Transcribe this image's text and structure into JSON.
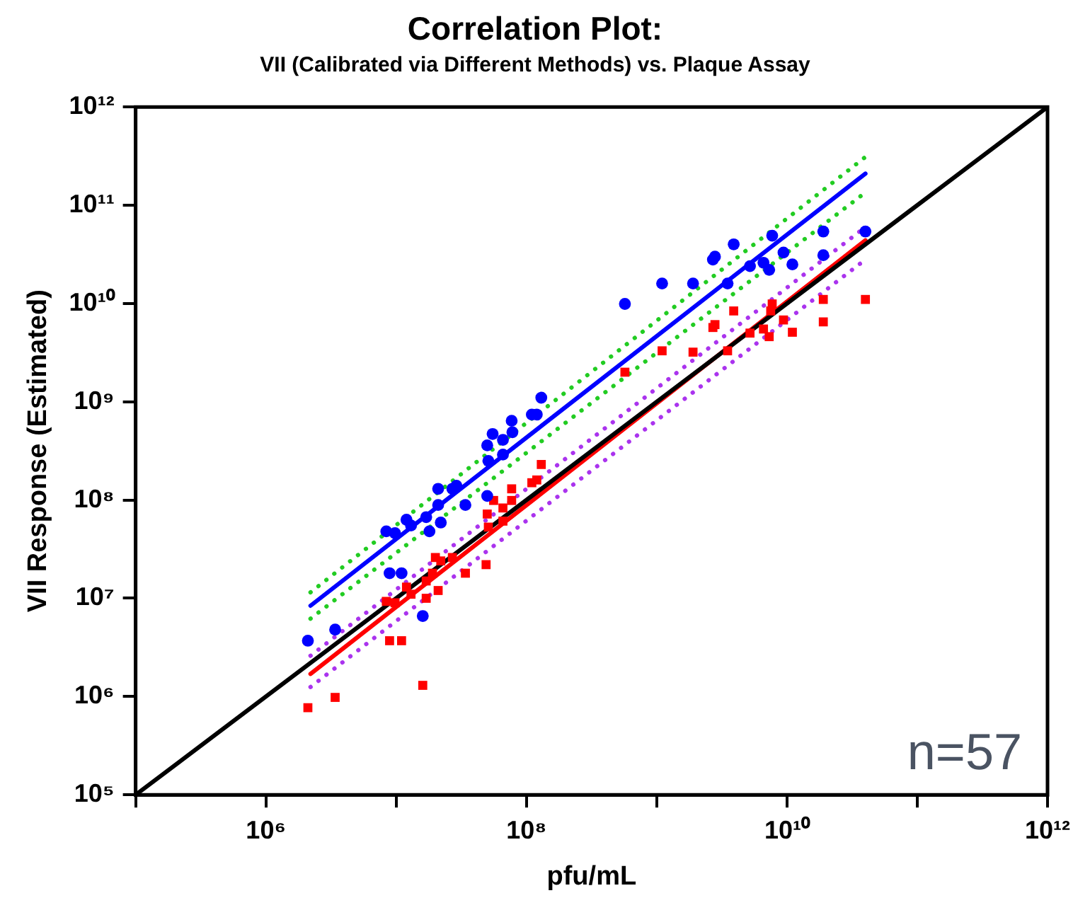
{
  "chart_data": {
    "type": "scatter",
    "title": "Correlation Plot:",
    "subtitle": "VII (Calibrated via Different Methods) vs. Plaque Assay",
    "xlabel": "pfu/mL",
    "ylabel": "VII Response (Estimated)",
    "log": "xy",
    "grid": false,
    "legend": false,
    "xlim": [
      100000.0,
      1000000000000.0
    ],
    "ylim": [
      100000.0,
      1000000000000.0
    ],
    "xticks": [
      {
        "value": 100000.0,
        "label": null
      },
      {
        "value": 1000000.0,
        "label": "10⁶"
      },
      {
        "value": 10000000.0,
        "label": null
      },
      {
        "value": 100000000.0,
        "label": "10⁸"
      },
      {
        "value": 1000000000.0,
        "label": null
      },
      {
        "value": 10000000000.0,
        "label": "10¹⁰"
      },
      {
        "value": 100000000000.0,
        "label": null
      },
      {
        "value": 1000000000000.0,
        "label": "10¹²"
      }
    ],
    "yticks": [
      {
        "value": 100000.0,
        "label": "10⁵"
      },
      {
        "value": 1000000.0,
        "label": "10⁶"
      },
      {
        "value": 10000000.0,
        "label": "10⁷"
      },
      {
        "value": 100000000.0,
        "label": "10⁸"
      },
      {
        "value": 1000000000.0,
        "label": "10⁹"
      },
      {
        "value": 10000000000.0,
        "label": "10¹⁰"
      },
      {
        "value": 100000000000.0,
        "label": "10¹¹"
      },
      {
        "value": 1000000000000.0,
        "label": "10¹²"
      }
    ],
    "annotations": [
      "n=57"
    ],
    "series": [
      {
        "marker": "circle",
        "color": "#0000ff",
        "x": [
          2100000.0,
          3400000.0,
          8900000.0,
          11000000.0,
          16000000.0,
          8400000.0,
          9800000.0,
          12000000.0,
          13000000.0,
          17000000.0,
          18000000.0,
          21000000.0,
          22000000.0,
          21000000.0,
          27000000.0,
          29000000.0,
          34000000.0,
          50000000.0,
          51000000.0,
          50000000.0,
          55000000.0,
          66000000.0,
          66000000.0,
          77000000.0,
          78000000.0,
          110000000.0,
          120000000.0,
          130000000.0,
          570000000.0,
          1100000000.0,
          1900000000.0,
          2700000000.0,
          2800000000.0,
          3900000000.0,
          3500000000.0,
          5200000000.0,
          6600000000.0,
          7300000000.0,
          7700000000.0,
          9400000000.0,
          11000000000.0,
          19000000000.0,
          19000000000.0,
          40000000000.0
        ],
        "values": [
          3700000.0,
          4800000.0,
          18000000.0,
          18000000.0,
          6600000.0,
          48000000.0,
          46000000.0,
          63000000.0,
          55000000.0,
          67000000.0,
          48000000.0,
          130000000.0,
          59000000.0,
          89000000.0,
          130000000.0,
          140000000.0,
          89000000.0,
          110000000.0,
          250000000.0,
          360000000.0,
          470000000.0,
          410000000.0,
          290000000.0,
          640000000.0,
          490000000.0,
          740000000.0,
          740000000.0,
          1100000000.0,
          9900000000.0,
          16000000000.0,
          16000000000.0,
          28000000000.0,
          30000000000.0,
          40000000000.0,
          16000000000.0,
          24000000000.0,
          26000000000.0,
          22000000000.0,
          49000000000.0,
          33000000000.0,
          25000000000.0,
          54000000000.0,
          31000000000.0,
          54000000000.0
        ]
      },
      {
        "marker": "square",
        "color": "#ff0000",
        "x": [
          2100000.0,
          3400000.0,
          8900000.0,
          11000000.0,
          16000000.0,
          8400000.0,
          9800000.0,
          12000000.0,
          13000000.0,
          17000000.0,
          17000000.0,
          21000000.0,
          19000000.0,
          20000000.0,
          22000000.0,
          27000000.0,
          34000000.0,
          49000000.0,
          50000000.0,
          56000000.0,
          66000000.0,
          77000000.0,
          77000000.0,
          66000000.0,
          51000000.0,
          110000000.0,
          120000000.0,
          130000000.0,
          570000000.0,
          1100000000.0,
          1900000000.0,
          2700000000.0,
          2800000000.0,
          3900000000.0,
          3500000000.0,
          5200000000.0,
          6600000000.0,
          7300000000.0,
          7700000000.0,
          7500000000.0,
          9400000000.0,
          11000000000.0,
          19000000000.0,
          19000000000.0,
          40000000000.0
        ],
        "values": [
          770000.0,
          980000.0,
          3700000.0,
          3700000.0,
          1300000.0,
          9300000.0,
          9000000.0,
          13000000.0,
          11000000.0,
          15000000.0,
          10000000.0,
          12000000.0,
          18000000.0,
          26000000.0,
          24000000.0,
          26000000.0,
          18000000.0,
          22000000.0,
          72000000.0,
          99000000.0,
          83000000.0,
          130000000.0,
          99000000.0,
          61000000.0,
          53000000.0,
          150000000.0,
          160000000.0,
          230000000.0,
          2000000000.0,
          3300000000.0,
          3200000000.0,
          5700000000.0,
          6100000000.0,
          8400000000.0,
          3300000000.0,
          5000000000.0,
          5500000000.0,
          4600000000.0,
          9900000000.0,
          8400000000.0,
          6800000000.0,
          5100000000.0,
          11000000000.0,
          6500000000.0,
          11000000000.0
        ]
      },
      {
        "type": "line",
        "line_style": "solid",
        "color": "#000000",
        "x": [
          100000.0,
          1000000000000.0
        ],
        "values": [
          100000.0,
          1000000000000.0
        ]
      },
      {
        "type": "line",
        "line_style": "dotted",
        "color": "#22cc22",
        "x": [
          2200000.0,
          40000000000.0
        ],
        "values": [
          11500000.0,
          310000000000.0
        ]
      },
      {
        "type": "line",
        "line_style": "dotted",
        "color": "#22cc22",
        "x": [
          2200000.0,
          40000000000.0
        ],
        "values": [
          6200000.0,
          135000000000.0
        ]
      },
      {
        "type": "line",
        "line_style": "dotted",
        "color": "#aa33ee",
        "x": [
          2200000.0,
          40000000000.0
        ],
        "values": [
          2600000.0,
          60000000000.0
        ]
      },
      {
        "type": "line",
        "line_style": "dotted",
        "color": "#aa33ee",
        "x": [
          2200000.0,
          40000000000.0
        ],
        "values": [
          1250000.0,
          28000000000.0
        ]
      },
      {
        "type": "line",
        "line_style": "solid",
        "color": "#0000ff",
        "x": [
          2200000.0,
          40000000000.0
        ],
        "values": [
          8400000.0,
          210000000000.0
        ]
      },
      {
        "type": "line",
        "line_style": "solid",
        "color": "#ff0000",
        "x": [
          2200000.0,
          40000000000.0
        ],
        "values": [
          1700000.0,
          44000000000.0
        ]
      }
    ]
  }
}
